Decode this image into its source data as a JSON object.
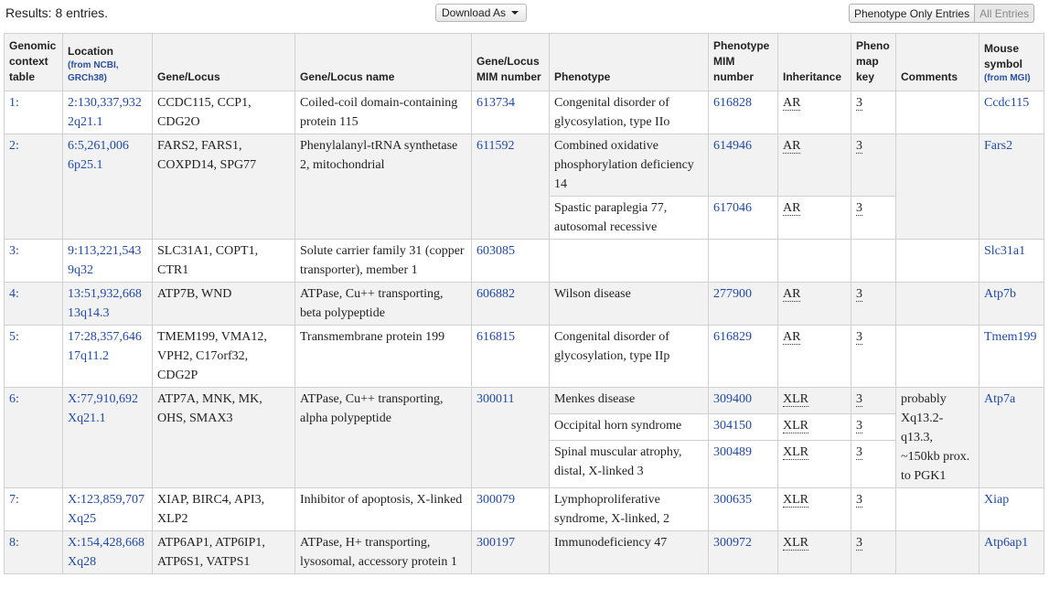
{
  "results_label": "Results: 8 entries.",
  "download_label": "Download As",
  "toggle": {
    "phenotype_only": "Phenotype Only Entries",
    "all_entries": "All Entries"
  },
  "headers": {
    "genomic_context": "Genomic context table",
    "location": "Location",
    "location_sub": "(from NCBI, GRCh38)",
    "gene_locus": "Gene/Locus",
    "gene_locus_name": "Gene/Locus name",
    "gene_mim": "Gene/Locus MIM number",
    "phenotype": "Phenotype",
    "phenotype_mim": "Phenotype MIM number",
    "inheritance": "Inheritance",
    "pheno_map_key": "Pheno map key",
    "comments": "Comments",
    "mouse_symbol": "Mouse symbol",
    "mouse_sub": "(from MGI)"
  },
  "rows": [
    {
      "num": "1:",
      "loc1": "2:130,337,932",
      "loc2": "2q21.1",
      "genes": "CCDC115, CCP1, CDG2O",
      "name": "Coiled-coil domain-containing protein 115",
      "mim": "613734",
      "mouse": "Ccdc115",
      "comments": "",
      "phenos": [
        {
          "phenotype": "Congenital disorder of glycosylation, type IIo",
          "pmim": "616828",
          "inh": "AR",
          "key": "3"
        }
      ]
    },
    {
      "num": "2:",
      "loc1": "6:5,261,006",
      "loc2": "6p25.1",
      "genes": "FARS2, FARS1, COXPD14, SPG77",
      "name": "Phenylalanyl-tRNA synthetase 2, mitochondrial",
      "mim": "611592",
      "mouse": "Fars2",
      "comments": "",
      "phenos": [
        {
          "phenotype": "Combined oxidative phosphorylation deficiency 14",
          "pmim": "614946",
          "inh": "AR",
          "key": "3"
        },
        {
          "phenotype": "Spastic paraplegia 77, autosomal recessive",
          "pmim": "617046",
          "inh": "AR",
          "key": "3"
        }
      ]
    },
    {
      "num": "3:",
      "loc1": "9:113,221,543",
      "loc2": "9q32",
      "genes": "SLC31A1, COPT1, CTR1",
      "name": "Solute carrier family 31 (copper transporter), member 1",
      "mim": "603085",
      "mouse": "Slc31a1",
      "comments": "",
      "phenos": [
        {
          "phenotype": "",
          "pmim": "",
          "inh": "",
          "key": ""
        }
      ]
    },
    {
      "num": "4:",
      "loc1": "13:51,932,668",
      "loc2": "13q14.3",
      "genes": "ATP7B, WND",
      "name": "ATPase, Cu++ transporting, beta polypeptide",
      "mim": "606882",
      "mouse": "Atp7b",
      "comments": "",
      "phenos": [
        {
          "phenotype": "Wilson disease",
          "pmim": "277900",
          "inh": "AR",
          "key": "3"
        }
      ]
    },
    {
      "num": "5:",
      "loc1": "17:28,357,646",
      "loc2": "17q11.2",
      "genes": "TMEM199, VMA12, VPH2, C17orf32, CDG2P",
      "name": "Transmembrane protein 199",
      "mim": "616815",
      "mouse": "Tmem199",
      "comments": "",
      "phenos": [
        {
          "phenotype": "Congenital disorder of glycosylation, type IIp",
          "pmim": "616829",
          "inh": "AR",
          "key": "3"
        }
      ]
    },
    {
      "num": "6:",
      "loc1": "X:77,910,692",
      "loc2": "Xq21.1",
      "genes": "ATP7A, MNK, MK, OHS, SMAX3",
      "name": "ATPase, Cu++ transporting, alpha polypeptide",
      "mim": "300011",
      "mouse": "Atp7a",
      "comments": "probably Xq13.2-q13.3, ~150kb prox. to PGK1",
      "phenos": [
        {
          "phenotype": "Menkes disease",
          "pmim": "309400",
          "inh": "XLR",
          "key": "3"
        },
        {
          "phenotype": "Occipital horn syndrome",
          "pmim": "304150",
          "inh": "XLR",
          "key": "3"
        },
        {
          "phenotype": "Spinal muscular atrophy, distal, X-linked 3",
          "pmim": "300489",
          "inh": "XLR",
          "key": "3"
        }
      ]
    },
    {
      "num": "7:",
      "loc1": "X:123,859,707",
      "loc2": "Xq25",
      "genes": "XIAP, BIRC4, API3, XLP2",
      "name": "Inhibitor of apoptosis, X-linked",
      "mim": "300079",
      "mouse": "Xiap",
      "comments": "",
      "phenos": [
        {
          "phenotype": "Lymphoproliferative syndrome, X-linked, 2",
          "pmim": "300635",
          "inh": "XLR",
          "key": "3"
        }
      ]
    },
    {
      "num": "8:",
      "loc1": "X:154,428,668",
      "loc2": "Xq28",
      "genes": "ATP6AP1, ATP6IP1, ATP6S1, VATPS1",
      "name": "ATPase, H+ transporting, lysosomal, accessory protein 1",
      "mim": "300197",
      "mouse": "Atp6ap1",
      "comments": "",
      "phenos": [
        {
          "phenotype": "Immunodeficiency 47",
          "pmim": "300972",
          "inh": "XLR",
          "key": "3"
        }
      ]
    }
  ]
}
